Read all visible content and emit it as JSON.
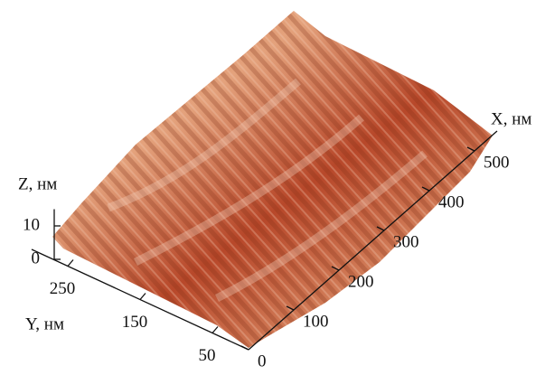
{
  "chart_data": {
    "type": "surface3d",
    "xlabel": "X, нм",
    "ylabel": "Y, нм",
    "zlabel": "Z, нм",
    "xlim": [
      0,
      550
    ],
    "xticks": [
      0,
      100,
      200,
      300,
      400,
      500
    ],
    "ylim": [
      0,
      300
    ],
    "yticks": [
      50,
      150,
      250
    ],
    "zlim": [
      0,
      15
    ],
    "zticks": [
      0,
      10
    ]
  }
}
